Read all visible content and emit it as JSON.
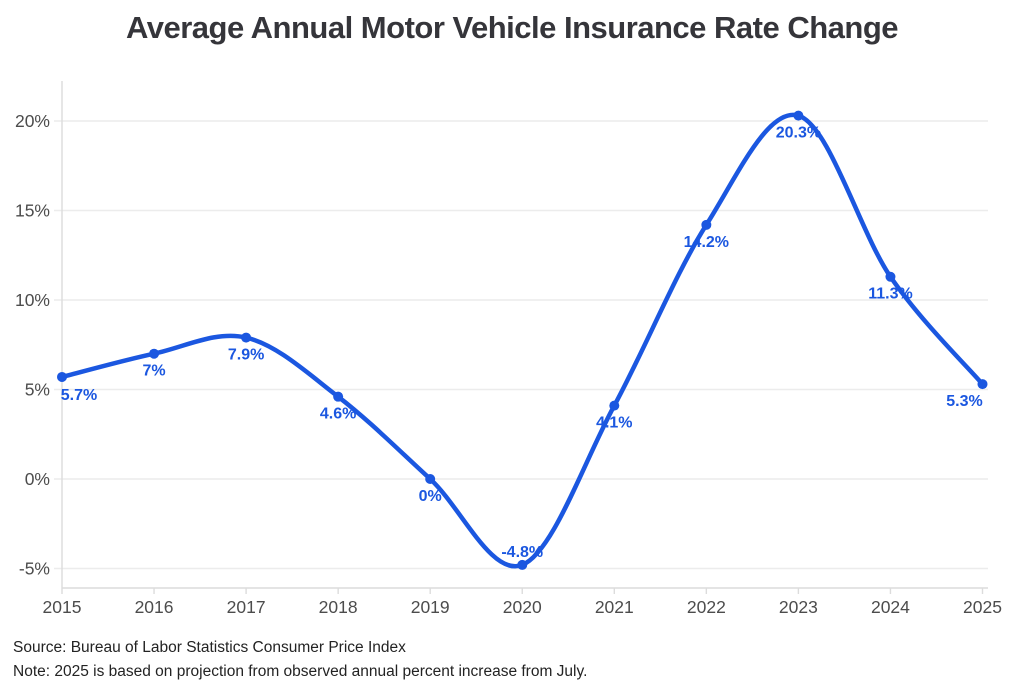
{
  "chart_data": {
    "type": "line",
    "title": "Average Annual Motor Vehicle Insurance Rate Change",
    "categories": [
      "2015",
      "2016",
      "2017",
      "2018",
      "2019",
      "2020",
      "2021",
      "2022",
      "2023",
      "2024",
      "2025"
    ],
    "series": [
      {
        "name": "Average annual motor vehicle insurance rate change",
        "values": [
          5.7,
          7.0,
          7.9,
          4.6,
          0.0,
          -4.8,
          4.1,
          14.2,
          20.3,
          11.3,
          5.3
        ]
      }
    ],
    "point_labels": [
      "5.7%",
      "7%",
      "7.9%",
      "4.6%",
      "0%",
      "-4.8%",
      "4.1%",
      "14.2%",
      "20.3%",
      "11.3%",
      "5.3%"
    ],
    "label_positions": [
      "below-right",
      "below",
      "below",
      "below",
      "below",
      "above",
      "below",
      "below",
      "below",
      "below",
      "below-left"
    ],
    "y_ticks": [
      {
        "value": 20,
        "label": "20%"
      },
      {
        "value": 15,
        "label": "15%"
      },
      {
        "value": 10,
        "label": "10%"
      },
      {
        "value": 5,
        "label": "5%"
      },
      {
        "value": 0,
        "label": "0%"
      },
      {
        "value": -5,
        "label": "-5%"
      }
    ],
    "ylim": [
      -6.1,
      22.2
    ],
    "xlabel": "",
    "ylabel": "",
    "grid": "horizontal",
    "legend": "none",
    "line_color": "#1b57e0",
    "marker_color": "#1b57e0",
    "data_label_color": "#1b57e0"
  },
  "footer": {
    "source": "Source: Bureau of Labor Statistics Consumer Price Index",
    "note": "Note: 2025 is based on projection from observed annual percent increase from July."
  }
}
